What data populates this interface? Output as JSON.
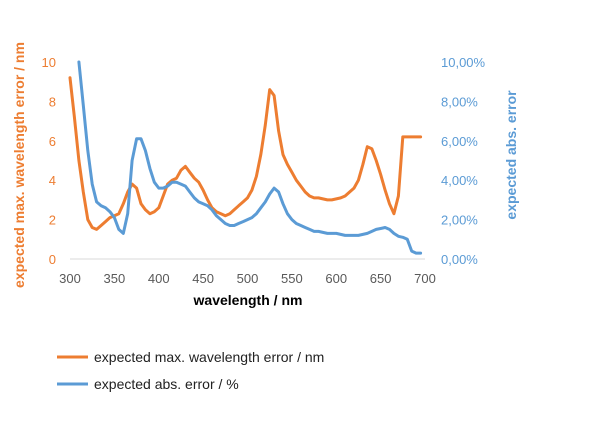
{
  "chart_data": {
    "type": "line",
    "title": "",
    "xlabel": "wavelength / nm",
    "ylabel_left": "expected max. wavelength error / nm",
    "ylabel_right": "expected abs. error",
    "xlim": [
      300,
      700
    ],
    "ylim_left": [
      0,
      10
    ],
    "ylim_right": [
      0,
      10
    ],
    "x_ticks": [
      "300",
      "350",
      "400",
      "450",
      "500",
      "550",
      "600",
      "650",
      "700"
    ],
    "y_left_ticks": [
      "0",
      "2",
      "4",
      "6",
      "8",
      "10"
    ],
    "y_right_ticks": [
      "0,00%",
      "2,00%",
      "4,00%",
      "6,00%",
      "8,00%",
      "10,00%"
    ],
    "grid": false,
    "legend_position": "bottom",
    "colors": {
      "orange": "#ED7D31",
      "blue": "#5B9BD5",
      "axis": "#d9d9d9",
      "text": "#595959"
    },
    "series": [
      {
        "name": "expected max. wavelength error / nm",
        "axis": "left",
        "color": "#ED7D31",
        "x": [
          300,
          305,
          310,
          315,
          320,
          325,
          330,
          335,
          340,
          345,
          350,
          355,
          360,
          365,
          370,
          375,
          380,
          385,
          390,
          395,
          400,
          405,
          410,
          415,
          420,
          425,
          430,
          435,
          440,
          445,
          450,
          455,
          460,
          465,
          470,
          475,
          480,
          485,
          490,
          495,
          500,
          505,
          510,
          515,
          520,
          525,
          530,
          535,
          540,
          545,
          550,
          555,
          560,
          565,
          570,
          575,
          580,
          585,
          590,
          595,
          600,
          605,
          610,
          615,
          620,
          625,
          630,
          635,
          640,
          645,
          650,
          655,
          660,
          665,
          670,
          675,
          680,
          685,
          690,
          695
        ],
        "values": [
          9.2,
          7.2,
          5.0,
          3.4,
          2.0,
          1.6,
          1.5,
          1.7,
          1.9,
          2.1,
          2.2,
          2.3,
          2.8,
          3.4,
          3.8,
          3.6,
          2.8,
          2.5,
          2.3,
          2.4,
          2.6,
          3.2,
          3.8,
          4.0,
          4.1,
          4.5,
          4.7,
          4.4,
          4.1,
          3.9,
          3.5,
          3.0,
          2.6,
          2.4,
          2.3,
          2.2,
          2.3,
          2.5,
          2.7,
          2.9,
          3.1,
          3.5,
          4.2,
          5.3,
          6.8,
          8.6,
          8.3,
          6.5,
          5.3,
          4.8,
          4.4,
          4.0,
          3.7,
          3.4,
          3.2,
          3.1,
          3.1,
          3.05,
          3.0,
          3.0,
          3.05,
          3.1,
          3.2,
          3.4,
          3.6,
          4.0,
          4.8,
          5.7,
          5.6,
          5.0,
          4.3,
          3.5,
          2.8,
          2.3,
          3.2,
          6.2,
          6.2,
          6.2,
          6.2,
          6.2
        ]
      },
      {
        "name": "expected abs. error / %",
        "axis": "right",
        "color": "#5B9BD5",
        "x": [
          310,
          315,
          320,
          325,
          330,
          335,
          340,
          345,
          350,
          355,
          360,
          365,
          370,
          375,
          380,
          385,
          390,
          395,
          400,
          405,
          410,
          415,
          420,
          425,
          430,
          435,
          440,
          445,
          450,
          455,
          460,
          465,
          470,
          475,
          480,
          485,
          490,
          495,
          500,
          505,
          510,
          515,
          520,
          525,
          530,
          535,
          540,
          545,
          550,
          555,
          560,
          565,
          570,
          575,
          580,
          585,
          590,
          595,
          600,
          605,
          610,
          615,
          620,
          625,
          630,
          635,
          640,
          645,
          650,
          655,
          660,
          665,
          670,
          675,
          680,
          685,
          690,
          695
        ],
        "values": [
          10.0,
          7.8,
          5.5,
          3.8,
          2.9,
          2.7,
          2.6,
          2.4,
          2.1,
          1.5,
          1.3,
          2.3,
          5.0,
          6.1,
          6.1,
          5.5,
          4.6,
          3.9,
          3.6,
          3.6,
          3.7,
          3.9,
          3.9,
          3.8,
          3.7,
          3.4,
          3.1,
          2.9,
          2.8,
          2.7,
          2.5,
          2.2,
          2.0,
          1.8,
          1.7,
          1.7,
          1.8,
          1.9,
          2.0,
          2.1,
          2.3,
          2.6,
          2.9,
          3.3,
          3.6,
          3.4,
          2.8,
          2.3,
          2.0,
          1.8,
          1.7,
          1.6,
          1.5,
          1.4,
          1.4,
          1.35,
          1.3,
          1.3,
          1.3,
          1.25,
          1.2,
          1.2,
          1.2,
          1.2,
          1.25,
          1.3,
          1.4,
          1.5,
          1.55,
          1.6,
          1.5,
          1.3,
          1.15,
          1.1,
          1.0,
          0.4,
          0.3,
          0.3
        ]
      }
    ]
  }
}
